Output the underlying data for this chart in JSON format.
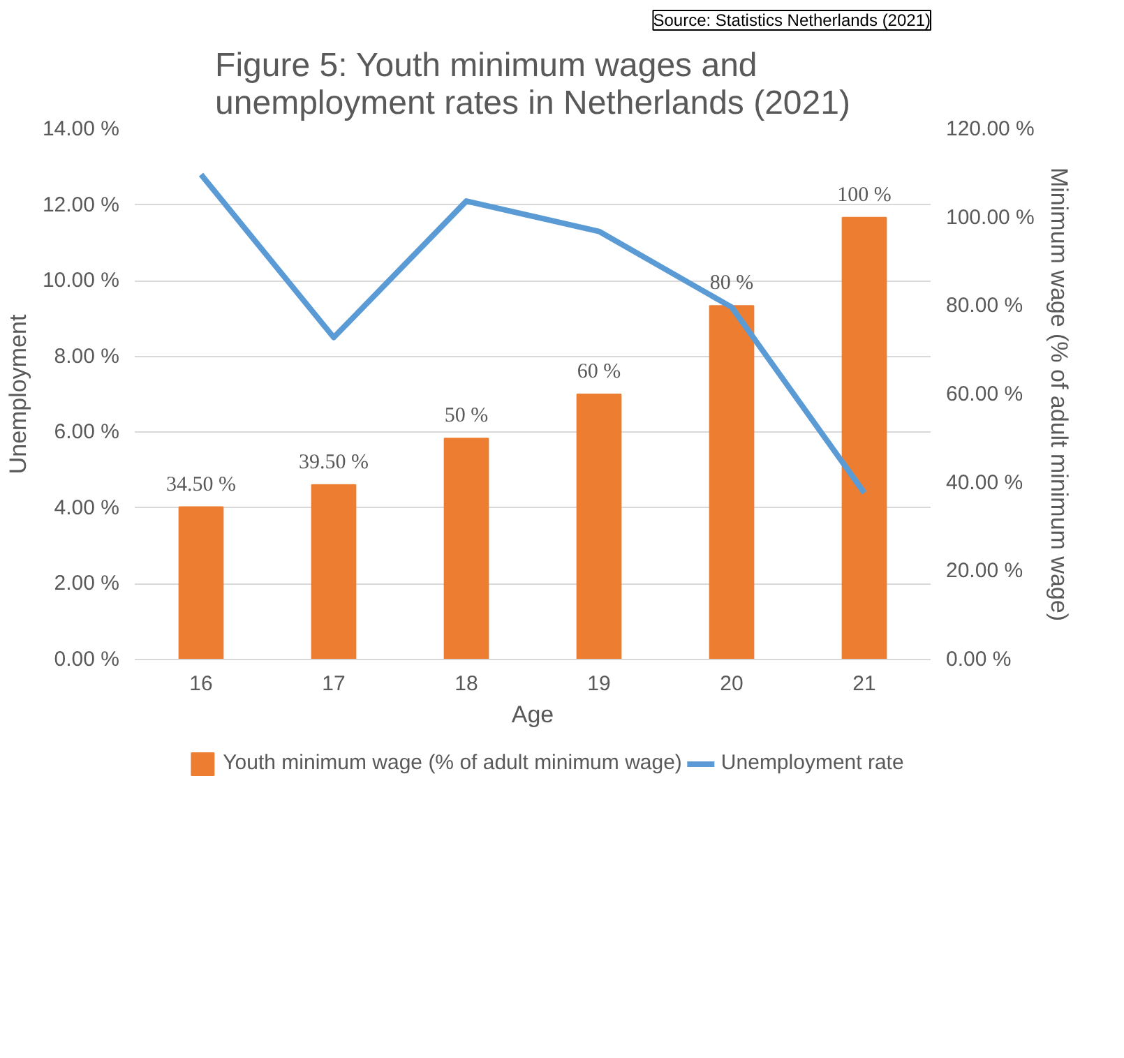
{
  "chart_data": {
    "type": "bar",
    "title": "Figure 5: Youth minimum wages and unemployment rates in Netherlands (2021)",
    "xlabel": "Age",
    "ylabel": "Unemployment",
    "y2label": "Minimum wage (% of adult minimum wage)",
    "categories": [
      "16",
      "17",
      "18",
      "19",
      "20",
      "21"
    ],
    "series": [
      {
        "name": "Youth minimum wage (% of adult minimum wage)",
        "axis": "y2",
        "color": "#ed7d31",
        "values": [
          34.5,
          39.5,
          50,
          60,
          80,
          100
        ],
        "value_labels": [
          "34.50 %",
          "39.50 %",
          "50 %",
          "60 %",
          "80 %",
          "100 %"
        ]
      },
      {
        "name": "Unemployment rate",
        "type": "line",
        "axis": "y",
        "color": "#5b9bd5",
        "values": [
          12.8,
          8.5,
          12.1,
          11.3,
          9.3,
          4.4
        ]
      }
    ],
    "ylim": [
      0,
      14
    ],
    "yticks": [
      {
        "value": 0,
        "label": "0.00 %"
      },
      {
        "value": 2,
        "label": "2.00 %"
      },
      {
        "value": 4,
        "label": "4.00 %"
      },
      {
        "value": 6,
        "label": "6.00 %"
      },
      {
        "value": 8,
        "label": "8.00 %"
      },
      {
        "value": 10,
        "label": "10.00 %"
      },
      {
        "value": 12,
        "label": "12.00 %"
      },
      {
        "value": 14,
        "label": "14.00 %"
      }
    ],
    "y2lim": [
      0,
      120
    ],
    "y2ticks": [
      {
        "value": 0,
        "label": "0.00 %"
      },
      {
        "value": 20,
        "label": "20.00 %"
      },
      {
        "value": 40,
        "label": "40.00 %"
      },
      {
        "value": 60,
        "label": "60.00 %"
      },
      {
        "value": 80,
        "label": "80.00 %"
      },
      {
        "value": 100,
        "label": "100.00 %"
      },
      {
        "value": 120,
        "label": "120.00 %"
      }
    ],
    "grid": "y",
    "legend": "bottom",
    "marker": "none",
    "annotations": [
      "Source: Statistics Netherlands (2021)"
    ]
  }
}
